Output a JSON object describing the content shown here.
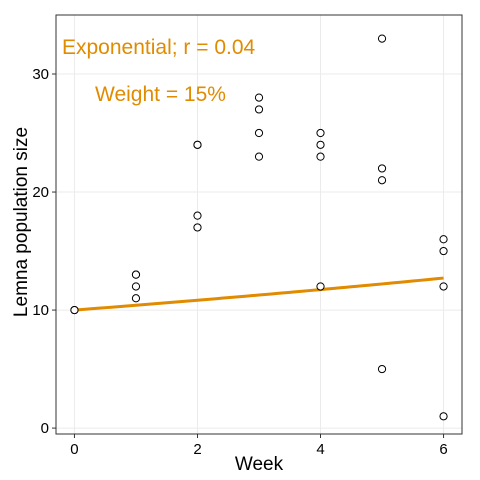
{
  "chart_data": {
    "type": "scatter",
    "title": "",
    "xlabel": "Week",
    "ylabel": "Lemna population size",
    "xlim": [
      -0.3,
      6.3
    ],
    "ylim": [
      -0.5,
      35
    ],
    "x_ticks": [
      0,
      2,
      4,
      6
    ],
    "y_ticks": [
      0,
      10,
      20,
      30
    ],
    "grid": true,
    "points": [
      {
        "x": 0,
        "y": 10
      },
      {
        "x": 0,
        "y": 10
      },
      {
        "x": 1,
        "y": 13
      },
      {
        "x": 1,
        "y": 13
      },
      {
        "x": 1,
        "y": 12
      },
      {
        "x": 1,
        "y": 11
      },
      {
        "x": 2,
        "y": 24
      },
      {
        "x": 2,
        "y": 24
      },
      {
        "x": 2,
        "y": 18
      },
      {
        "x": 2,
        "y": 17
      },
      {
        "x": 3,
        "y": 28
      },
      {
        "x": 3,
        "y": 27
      },
      {
        "x": 3,
        "y": 25
      },
      {
        "x": 3,
        "y": 23
      },
      {
        "x": 4,
        "y": 25
      },
      {
        "x": 4,
        "y": 24
      },
      {
        "x": 4,
        "y": 23
      },
      {
        "x": 4,
        "y": 12
      },
      {
        "x": 5,
        "y": 33
      },
      {
        "x": 5,
        "y": 22
      },
      {
        "x": 5,
        "y": 21
      },
      {
        "x": 5,
        "y": 5
      },
      {
        "x": 6,
        "y": 16
      },
      {
        "x": 6,
        "y": 15
      },
      {
        "x": 6,
        "y": 12
      },
      {
        "x": 6,
        "y": 1
      }
    ],
    "fit": {
      "model": "exponential",
      "a": 10,
      "r": 0.04,
      "x_from": 0,
      "x_to": 6,
      "color": "#e08b00"
    },
    "annotations": [
      "Exponential; r = 0.04",
      "Weight = 15%"
    ]
  },
  "colors": {
    "accent": "#e08b00",
    "grid": "#ebebeb",
    "border": "#333333"
  }
}
